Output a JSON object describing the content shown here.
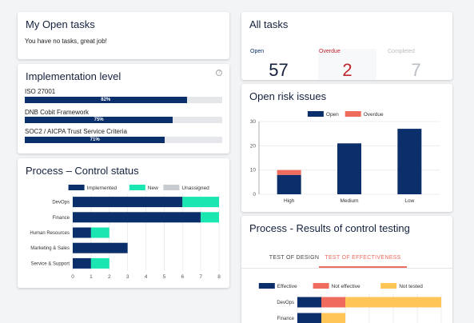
{
  "open_tasks": {
    "title": "My Open tasks",
    "message": "You have no tasks, great job!"
  },
  "all_tasks": {
    "title": "All tasks",
    "stats": [
      {
        "label": "Open",
        "value": "57",
        "color": "#0b2f6b"
      },
      {
        "label": "Overdue",
        "value": "2",
        "color": "#c0262d"
      },
      {
        "label": "Completed",
        "value": "7",
        "color": "#b8bcc2"
      }
    ]
  },
  "implementation": {
    "title": "Implementation level",
    "help_icon": "question-circle-icon",
    "items": [
      {
        "label": "ISO 27001",
        "percent": 82,
        "percent_label": "82%"
      },
      {
        "label": "DNB Cobit Framework",
        "percent": 75,
        "percent_label": "75%"
      },
      {
        "label": "SOC2 / AICPA Trust Service Criteria",
        "percent": 71,
        "percent_label": "71%"
      }
    ]
  },
  "risk": {
    "title": "Open risk issues",
    "chart_data": {
      "type": "bar",
      "stacked": true,
      "categories": [
        "High",
        "Medium",
        "Low"
      ],
      "series": [
        {
          "name": "Open",
          "color": "#0b2f6b",
          "values": [
            8,
            21,
            27
          ]
        },
        {
          "name": "Overdue",
          "color": "#ef6b5e",
          "values": [
            2,
            0,
            0
          ]
        }
      ],
      "ylim": [
        0,
        30
      ],
      "yticks": [
        "0",
        "10",
        "20",
        "30"
      ],
      "legend": "top"
    }
  },
  "control_status": {
    "title": "Process – Control status",
    "chart_data": {
      "type": "bar",
      "orientation": "horizontal",
      "stacked": true,
      "categories": [
        "DevOps",
        "Finance",
        "Human Resources",
        "Marketing & Sales",
        "Service & Support"
      ],
      "series": [
        {
          "name": "Implemented",
          "color": "#0b2f6b",
          "values": [
            6,
            7,
            1,
            3,
            1
          ]
        },
        {
          "name": "New",
          "color": "#19e6b0",
          "values": [
            2,
            1,
            1,
            0,
            1
          ]
        },
        {
          "name": "Unassigned",
          "color": "#c8ccd1",
          "values": [
            0,
            0,
            0,
            0,
            0
          ]
        }
      ],
      "xlim": [
        0,
        8
      ],
      "xticks": [
        "0",
        "1",
        "2",
        "3",
        "4",
        "5",
        "6",
        "7",
        "8"
      ],
      "legend": "top"
    }
  },
  "testing": {
    "title": "Process - Results of control testing",
    "tabs": [
      {
        "label": "TEST OF DESIGN",
        "active": false
      },
      {
        "label": "TEST OF EFFECTIVENESS",
        "active": true
      }
    ],
    "chart_data": {
      "type": "bar",
      "orientation": "horizontal",
      "stacked": true,
      "categories": [
        "DevOps",
        "Finance"
      ],
      "series": [
        {
          "name": "Effective",
          "color": "#0b2f6b",
          "values": [
            1,
            1
          ]
        },
        {
          "name": "Not effective",
          "color": "#ef6b5e",
          "values": [
            1,
            0
          ]
        },
        {
          "name": "Not tested",
          "color": "#ffc657",
          "values": [
            4,
            1
          ]
        }
      ],
      "xlim": [
        0,
        6
      ],
      "legend": "top"
    }
  }
}
